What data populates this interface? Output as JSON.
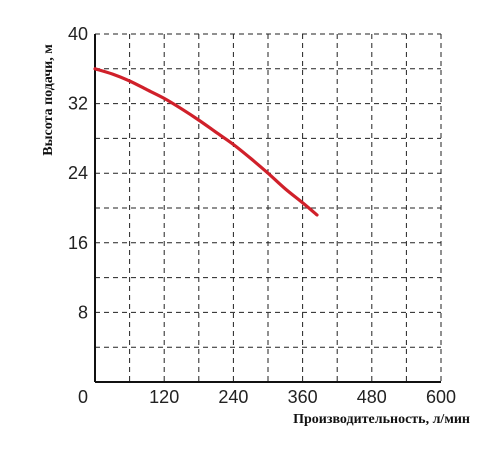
{
  "chart_data": {
    "type": "line",
    "xlabel": "Производительность, л/мин",
    "ylabel": "Высота подачи, м",
    "xlim": [
      0,
      600
    ],
    "ylim": [
      0,
      40
    ],
    "x_ticks": [
      "0",
      "120",
      "240",
      "360",
      "480",
      "600"
    ],
    "y_ticks": [
      "8",
      "16",
      "24",
      "32",
      "40"
    ],
    "grid": "dashed",
    "series": [
      {
        "color": "#d0202a",
        "x": [
          0,
          30,
          60,
          90,
          120,
          150,
          180,
          210,
          240,
          270,
          300,
          330,
          360,
          385
        ],
        "y": [
          36.0,
          35.4,
          34.6,
          33.6,
          32.6,
          31.4,
          30.1,
          28.7,
          27.3,
          25.7,
          24.0,
          22.2,
          20.6,
          19.2
        ]
      }
    ]
  }
}
